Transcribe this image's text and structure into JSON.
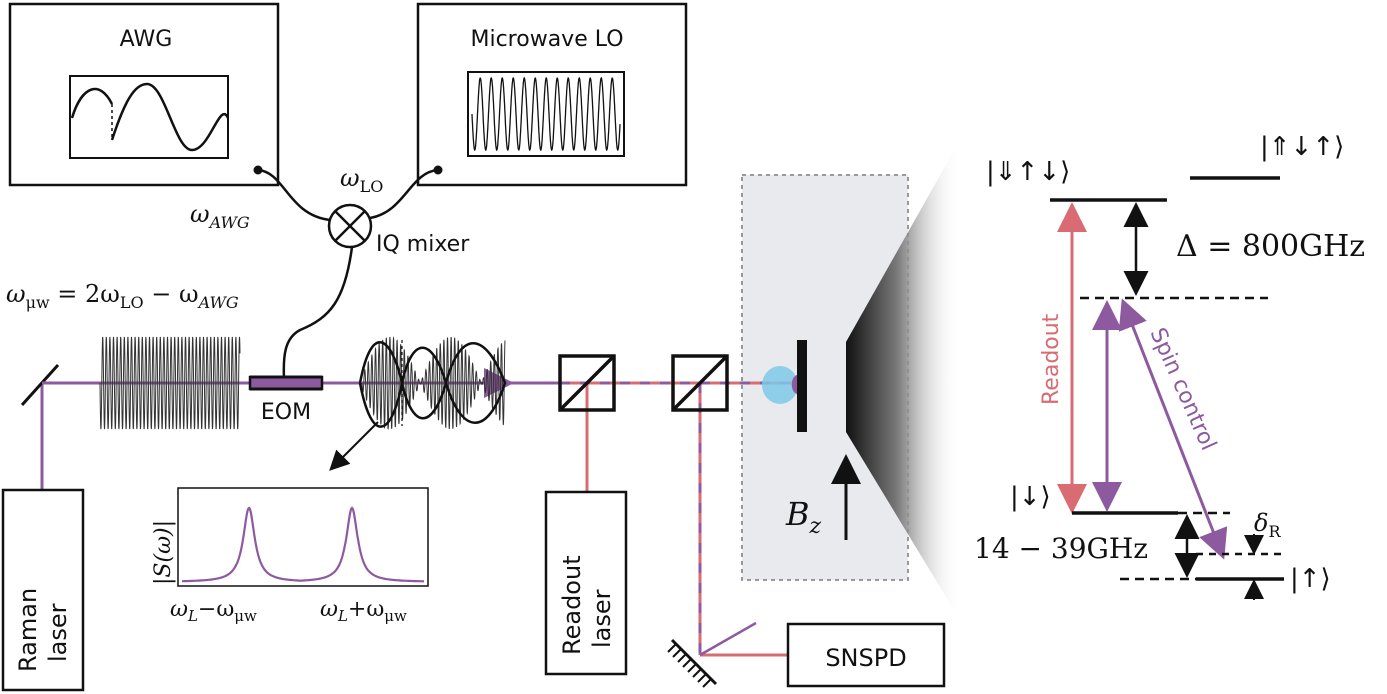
{
  "instruments": {
    "awg": "AWG",
    "lo": "Microwave LO",
    "raman": [
      "Raman",
      "laser"
    ],
    "readout_laser": [
      "Readout",
      "laser"
    ],
    "snspd": "SNSPD",
    "eom": "EOM",
    "iq_mixer": "IQ mixer"
  },
  "signals": {
    "w_awg": "ω",
    "w_awg_sub": "AWG",
    "w_lo": "ω",
    "w_lo_sub": "LO",
    "uw_eq_a": "ω",
    "uw_eq_a_sub": "μw",
    "uw_eq_b": " = 2ω",
    "uw_eq_b_sub": "LO",
    "uw_eq_c": " − ω",
    "uw_eq_c_sub": "AWG"
  },
  "spectrum": {
    "ylabel": "|S(ω)|",
    "left_label": "ω",
    "left_sub": "L",
    "left_minus": "−ω",
    "left_minus_sub": "μw",
    "right_label": "ω",
    "right_sub": "L",
    "right_plus": "+ω",
    "right_plus_sub": "μw"
  },
  "field": {
    "label": "B",
    "sub": "z"
  },
  "levels": {
    "excited_a": "|⇓↑↓⟩",
    "excited_b": "|⇑↓↑⟩",
    "delta_eq": "Δ = 800GHz",
    "readout": "Readout",
    "spin_control": "Spin control",
    "ground_down": "|↓⟩",
    "ground_up": "|↑⟩",
    "splitting": "14 − 39GHz",
    "detuning": "δ",
    "detuning_sub": "R"
  },
  "colors": {
    "purple": "#8e5a9f",
    "red": "#d96b72",
    "black": "#111111",
    "chamber": "#e8eaee",
    "spot": "#7fc9e8"
  }
}
